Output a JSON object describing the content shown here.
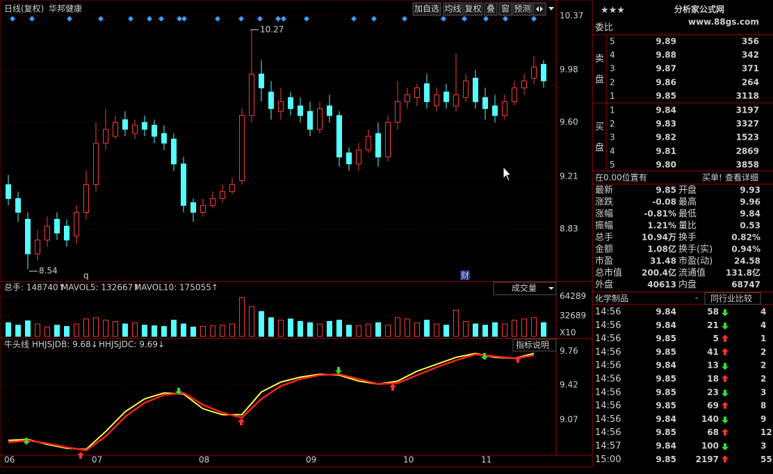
{
  "header": {
    "period": "日线(复权)",
    "stock": "华邦健康",
    "buttons": [
      "加自选",
      "均线",
      "复权",
      "叠",
      "窗",
      "预测"
    ]
  },
  "chart_data": [
    {
      "type": "candlestick",
      "categories": [
        "06",
        null,
        null,
        null,
        null,
        null,
        null,
        null,
        null,
        "07",
        null,
        null,
        null,
        null,
        null,
        null,
        null,
        null,
        null,
        null,
        "08",
        null,
        null,
        null,
        null,
        null,
        null,
        null,
        null,
        null,
        null,
        "09",
        null,
        null,
        null,
        null,
        null,
        null,
        null,
        null,
        null,
        "10",
        null,
        null,
        null,
        null,
        null,
        null,
        null,
        "11",
        null,
        null,
        null,
        null,
        null,
        null
      ],
      "open": [
        9.15,
        9.05,
        8.9,
        8.65,
        8.75,
        8.9,
        8.85,
        8.78,
        8.95,
        9.15,
        9.45,
        9.5,
        9.62,
        9.52,
        9.6,
        9.58,
        9.52,
        9.48,
        9.3,
        9.02,
        8.95,
        9.0,
        9.05,
        9.1,
        9.18,
        9.65,
        9.95,
        9.82,
        9.68,
        9.78,
        9.72,
        9.68,
        9.55,
        9.72,
        9.65,
        9.38,
        9.3,
        9.4,
        9.52,
        9.35,
        9.6,
        9.75,
        9.78,
        9.88,
        9.72,
        9.82,
        9.72,
        9.78,
        9.92,
        9.78,
        9.72,
        9.65,
        9.75,
        9.85,
        9.92,
        10.02
      ],
      "high": [
        9.22,
        9.1,
        8.95,
        8.82,
        8.92,
        8.95,
        8.9,
        9.0,
        9.25,
        9.6,
        9.7,
        9.65,
        9.68,
        9.62,
        9.65,
        9.62,
        9.58,
        9.52,
        9.35,
        9.05,
        9.05,
        9.1,
        9.15,
        9.2,
        9.7,
        10.27,
        10.05,
        9.9,
        9.85,
        9.82,
        9.78,
        9.75,
        9.75,
        9.8,
        9.68,
        9.42,
        9.45,
        9.55,
        9.6,
        9.65,
        9.9,
        9.85,
        9.88,
        9.95,
        9.85,
        9.88,
        10.1,
        9.95,
        9.98,
        9.85,
        9.8,
        9.8,
        9.9,
        9.95,
        10.08,
        10.05
      ],
      "low": [
        9.0,
        8.88,
        8.54,
        8.6,
        8.7,
        8.75,
        8.7,
        8.72,
        8.9,
        9.1,
        9.4,
        9.48,
        9.5,
        9.48,
        9.5,
        9.45,
        9.4,
        9.25,
        8.95,
        8.88,
        8.92,
        8.98,
        9.02,
        9.08,
        9.15,
        9.6,
        9.75,
        9.62,
        9.62,
        9.65,
        9.6,
        9.5,
        9.52,
        9.6,
        9.28,
        9.25,
        9.25,
        9.38,
        9.28,
        9.32,
        9.55,
        9.7,
        9.72,
        9.7,
        9.68,
        9.7,
        9.68,
        9.75,
        9.7,
        9.62,
        9.6,
        9.62,
        9.72,
        9.8,
        9.88,
        9.85
      ],
      "close": [
        9.05,
        8.95,
        8.65,
        8.75,
        8.85,
        8.8,
        8.75,
        8.95,
        9.15,
        9.45,
        9.55,
        9.6,
        9.55,
        9.58,
        9.55,
        9.5,
        9.45,
        9.3,
        9.0,
        8.95,
        9.0,
        9.05,
        9.1,
        9.15,
        9.65,
        9.95,
        9.85,
        9.7,
        9.75,
        9.7,
        9.65,
        9.55,
        9.7,
        9.65,
        9.35,
        9.3,
        9.4,
        9.5,
        9.35,
        9.6,
        9.75,
        9.8,
        9.85,
        9.75,
        9.8,
        9.75,
        9.8,
        9.9,
        9.75,
        9.7,
        9.65,
        9.75,
        9.85,
        9.9,
        10.0,
        9.9
      ],
      "up_color": "#ff3c3c",
      "down_color": "#54ffff",
      "ylim": [
        8.45,
        10.435
      ],
      "yticks": [
        10.37,
        9.98,
        {
          "value": 9.6,
          "label": "9.60"
        },
        9.21,
        8.83
      ],
      "markers": [
        "q",
        "财"
      ]
    },
    {
      "type": "bar",
      "legend": [
        "总手: 148740↑",
        "MAVOL5: 132667↑",
        "MAVOL10: 175055↑"
      ],
      "values": [
        22000,
        18000,
        25000,
        20000,
        15000,
        18000,
        16000,
        20000,
        28000,
        30000,
        26000,
        24000,
        20000,
        22000,
        18000,
        17000,
        16000,
        26000,
        20000,
        15000,
        16000,
        17000,
        18000,
        20000,
        62000,
        48000,
        40000,
        30000,
        26000,
        28000,
        24000,
        22000,
        20000,
        24000,
        26000,
        18000,
        17000,
        20000,
        22000,
        18000,
        30000,
        28000,
        22000,
        26000,
        20000,
        18000,
        42000,
        24000,
        20000,
        18000,
        22000,
        20000,
        26000,
        28000,
        30000,
        22000
      ],
      "ylim": [
        0,
        88000
      ],
      "yticks": [
        64289,
        32689
      ],
      "unit_label": "X10",
      "selector": "成交量"
    },
    {
      "type": "line",
      "title": "牛头线",
      "legend": [
        "HHJSJDB: 9.68↓",
        "HHJSJDC: 9.69↓"
      ],
      "series": [
        {
          "color": "#ffff40",
          "values": [
            8.86,
            8.87,
            8.82,
            8.78,
            8.77,
            8.95,
            9.15,
            9.28,
            9.34,
            9.33,
            9.18,
            9.12,
            9.12,
            9.35,
            9.45,
            9.5,
            9.53,
            9.52,
            9.46,
            9.43,
            9.46,
            9.56,
            9.63,
            9.7,
            9.74,
            9.7,
            9.69,
            9.74
          ]
        },
        {
          "color": "#ff2020",
          "values": [
            8.84,
            8.86,
            8.83,
            8.79,
            8.76,
            8.9,
            9.1,
            9.24,
            9.32,
            9.34,
            9.22,
            9.14,
            9.09,
            9.28,
            9.41,
            9.48,
            9.52,
            9.53,
            9.48,
            9.43,
            9.44,
            9.52,
            9.6,
            9.67,
            9.73,
            9.71,
            9.69,
            9.72
          ]
        }
      ],
      "ylim": [
        8.71,
        9.87
      ],
      "yticks": [
        9.76,
        9.42,
        9.07
      ],
      "help_button": "指标说明"
    }
  ],
  "quote_panel": {
    "stars": "★★★",
    "logo_name": "分析家公式网",
    "logo_url": "www.88gs.com",
    "weibi": "委比",
    "sell_label": [
      "卖",
      "盘"
    ],
    "buy_label": [
      "买",
      "盘"
    ],
    "sell": [
      [
        "5",
        "9.89",
        "356"
      ],
      [
        "4",
        "9.88",
        "342"
      ],
      [
        "3",
        "9.87",
        "371"
      ],
      [
        "2",
        "9.86",
        "264"
      ],
      [
        "1",
        "9.85",
        "3118"
      ]
    ],
    "buy": [
      [
        "1",
        "9.84",
        "3197"
      ],
      [
        "2",
        "9.83",
        "3327"
      ],
      [
        "3",
        "9.82",
        "1523"
      ],
      [
        "4",
        "9.81",
        "2869"
      ],
      [
        "5",
        "9.80",
        "3858"
      ]
    ],
    "position_note": "在0.00位置有",
    "buy_alert": "买单!",
    "detail_button": "查看详细",
    "stats": [
      [
        "最新",
        "9.85",
        "开盘",
        "9.93"
      ],
      [
        "涨跌",
        "-0.08",
        "最高",
        "9.96"
      ],
      [
        "涨幅",
        "-0.81%",
        "最低",
        "9.84"
      ],
      [
        "振幅",
        "1.21%",
        "量比",
        "0.53"
      ],
      [
        "总手",
        "10.94万",
        "换手",
        "0.82%"
      ],
      [
        "金额",
        "1.08亿",
        "换手(实)",
        "0.94%"
      ],
      [
        "市盈",
        "31.48",
        "市盈(动)",
        "24.58"
      ],
      [
        "总市值",
        "200.4亿",
        "流通值",
        "131.8亿"
      ],
      [
        "外盘",
        "40613",
        "内盘",
        "68747"
      ]
    ],
    "industry": "化学制品",
    "industry_toggle": "-",
    "compare_button": "同行业比较",
    "ticks": [
      [
        "14:56",
        "9.84",
        "58",
        "4"
      ],
      [
        "14:56",
        "9.84",
        "21",
        "4"
      ],
      [
        "14:56",
        "9.85",
        "5",
        "1"
      ],
      [
        "14:56",
        "9.85",
        "41",
        "2"
      ],
      [
        "14:56",
        "9.84",
        "13",
        "2"
      ],
      [
        "14:56",
        "9.85",
        "18",
        "2"
      ],
      [
        "14:56",
        "9.85",
        "23",
        "3"
      ],
      [
        "14:56",
        "9.85",
        "69",
        "8"
      ],
      [
        "14:56",
        "9.84",
        "140",
        "9"
      ],
      [
        "14:56",
        "9.85",
        "68",
        "12"
      ],
      [
        "14:57",
        "9.84",
        "100",
        "3"
      ],
      [
        "15:00",
        "9.85",
        "2197",
        "55"
      ]
    ]
  }
}
